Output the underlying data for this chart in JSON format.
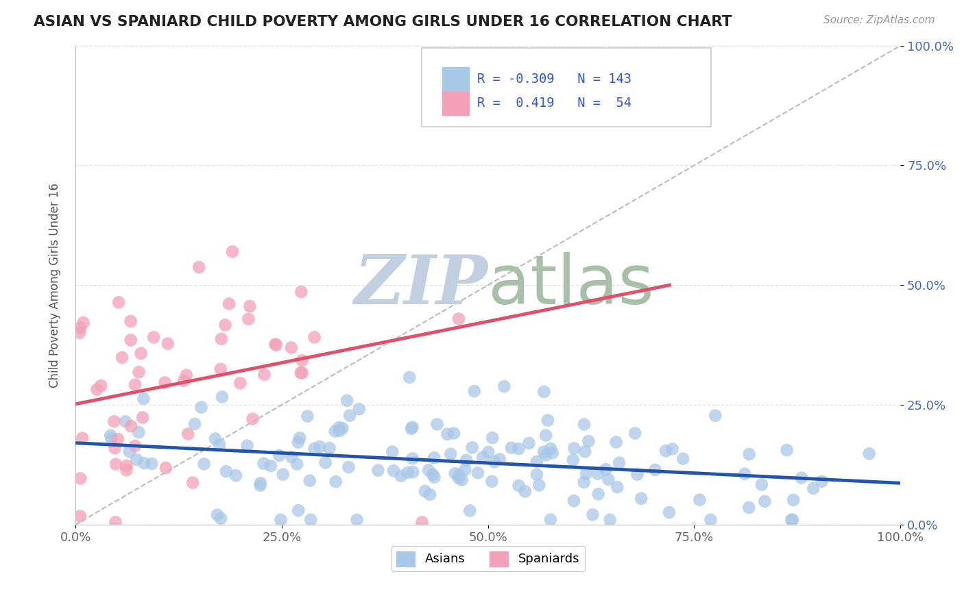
{
  "title": "ASIAN VS SPANIARD CHILD POVERTY AMONG GIRLS UNDER 16 CORRELATION CHART",
  "source_text": "Source: ZipAtlas.com",
  "ylabel": "Child Poverty Among Girls Under 16",
  "xlim": [
    0,
    1
  ],
  "ylim": [
    0,
    1
  ],
  "xticks": [
    0.0,
    0.25,
    0.5,
    0.75,
    1.0
  ],
  "yticks": [
    0.0,
    0.25,
    0.5,
    0.75,
    1.0
  ],
  "xticklabels": [
    "0.0%",
    "25.0%",
    "50.0%",
    "75.0%",
    "100.0%"
  ],
  "yticklabels": [
    "0.0%",
    "25.0%",
    "50.0%",
    "75.0%",
    "100.0%"
  ],
  "asian_R": -0.309,
  "asian_N": 143,
  "spaniard_R": 0.419,
  "spaniard_N": 54,
  "asian_color": "#a8c8e8",
  "spaniard_color": "#f4a0b8",
  "asian_line_color": "#2255aa",
  "spaniard_line_color": "#e0506a",
  "reference_line_color": "#bbbbbb",
  "title_color": "#222222",
  "legend_text_color": "#3355dd",
  "watermark_zip_color": "#c0d0e0",
  "watermark_atlas_color": "#a8c0a8",
  "background_color": "#ffffff",
  "grid_color": "#e0e0e0",
  "spine_color": "#bbbbbb",
  "tick_color": "#666666",
  "ytick_color": "#4466cc"
}
